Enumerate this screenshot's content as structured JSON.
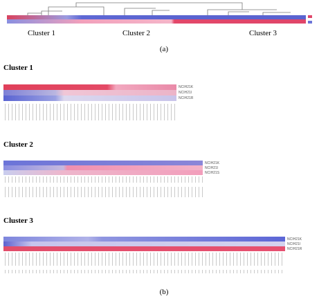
{
  "panel_a": {
    "clusters": [
      "Cluster 1",
      "Cluster 2",
      "Cluster 3"
    ],
    "caption": "(a)"
  },
  "panel_b": {
    "heatmaps": [
      {
        "title": "Cluster 1",
        "rows": [
          "NCIH21K",
          "NCIH21I",
          "NCIH21R"
        ]
      },
      {
        "title": "Cluster 2",
        "rows": [
          "NCIH21K",
          "NCIH21I",
          "NCIH21S"
        ]
      },
      {
        "title": "Cluster 3",
        "rows": [
          "NCIH21K",
          "NCIH21I",
          "NCIH21R"
        ]
      }
    ],
    "caption": "(b)"
  }
}
